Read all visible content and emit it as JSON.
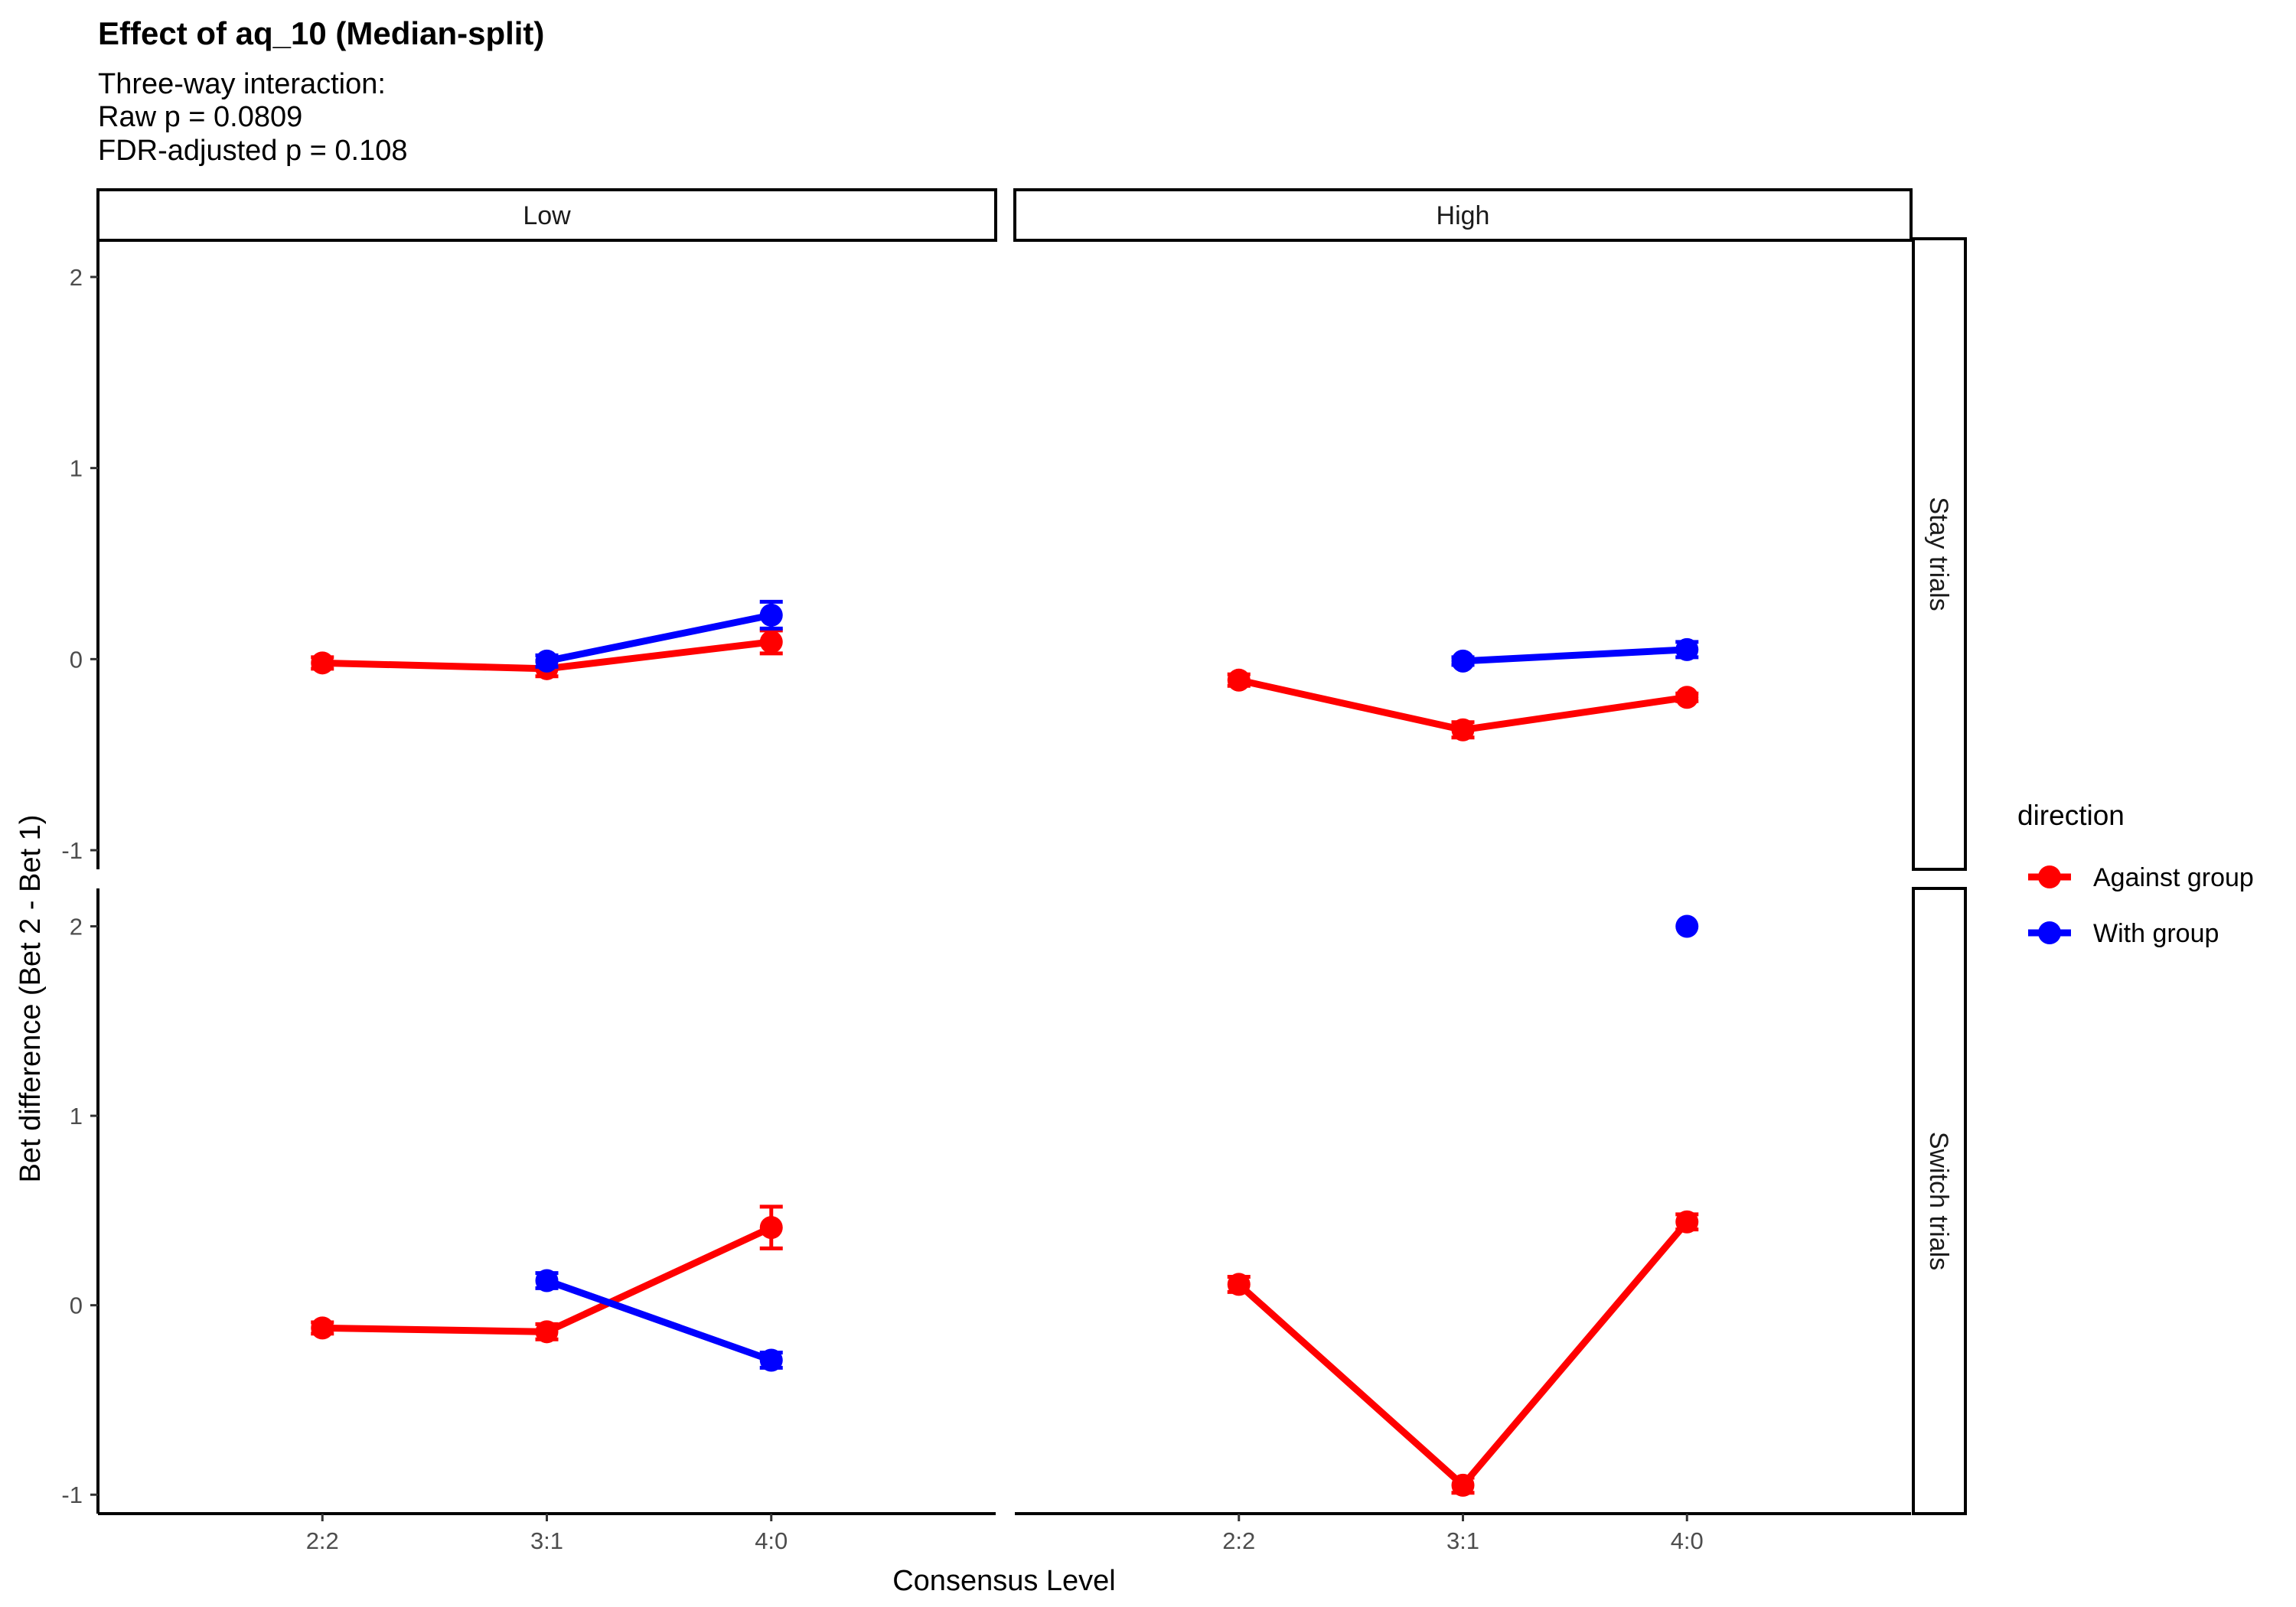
{
  "chart_data": {
    "type": "line",
    "title": "Effect of aq_10 (Median-split)",
    "subtitle_lines": [
      "Three-way interaction:",
      "Raw p = 0.0809",
      "FDR-adjusted p = 0.108"
    ],
    "xlabel": "Consensus Level",
    "ylabel": "Bet difference (Bet 2 - Bet 1)",
    "categories": [
      "2:2",
      "3:1",
      "4:0"
    ],
    "yticks": [
      -1,
      0,
      1,
      2
    ],
    "ylim": [
      -1.1,
      2.2
    ],
    "grid": false,
    "col_facets": [
      "Low",
      "High"
    ],
    "row_facets": [
      "Stay trials",
      "Switch trials"
    ],
    "legend": {
      "title": "direction",
      "position": "right",
      "entries": [
        {
          "name": "Against group",
          "color": "#ff0000"
        },
        {
          "name": "With group",
          "color": "#0000ff"
        }
      ]
    },
    "panels": [
      {
        "col": "Low",
        "row": "Stay trials",
        "series": [
          {
            "name": "Against group",
            "color": "#ff0000",
            "points": [
              {
                "x": "2:2",
                "y": -0.02,
                "err": 0.03
              },
              {
                "x": "3:1",
                "y": -0.05,
                "err": 0.04
              },
              {
                "x": "4:0",
                "y": 0.09,
                "err": 0.06
              }
            ]
          },
          {
            "name": "With group",
            "color": "#0000ff",
            "points": [
              {
                "x": "3:1",
                "y": -0.01,
                "err": 0.03
              },
              {
                "x": "4:0",
                "y": 0.23,
                "err": 0.07
              }
            ]
          }
        ]
      },
      {
        "col": "High",
        "row": "Stay trials",
        "series": [
          {
            "name": "Against group",
            "color": "#ff0000",
            "points": [
              {
                "x": "2:2",
                "y": -0.11,
                "err": 0.03
              },
              {
                "x": "3:1",
                "y": -0.37,
                "err": 0.04
              },
              {
                "x": "4:0",
                "y": -0.2,
                "err": 0.02
              }
            ]
          },
          {
            "name": "With group",
            "color": "#0000ff",
            "points": [
              {
                "x": "3:1",
                "y": -0.01,
                "err": 0.02
              },
              {
                "x": "4:0",
                "y": 0.05,
                "err": 0.04
              }
            ]
          }
        ]
      },
      {
        "col": "Low",
        "row": "Switch trials",
        "series": [
          {
            "name": "Against group",
            "color": "#ff0000",
            "points": [
              {
                "x": "2:2",
                "y": -0.12,
                "err": 0.03
              },
              {
                "x": "3:1",
                "y": -0.14,
                "err": 0.04
              },
              {
                "x": "4:0",
                "y": 0.41,
                "err": 0.11
              }
            ]
          },
          {
            "name": "With group",
            "color": "#0000ff",
            "points": [
              {
                "x": "3:1",
                "y": 0.13,
                "err": 0.04
              },
              {
                "x": "4:0",
                "y": -0.29,
                "err": 0.04
              }
            ]
          }
        ]
      },
      {
        "col": "High",
        "row": "Switch trials",
        "series": [
          {
            "name": "Against group",
            "color": "#ff0000",
            "points": [
              {
                "x": "2:2",
                "y": 0.11,
                "err": 0.04
              },
              {
                "x": "3:1",
                "y": -0.95,
                "err": 0.04
              },
              {
                "x": "4:0",
                "y": 0.44,
                "err": 0.04
              }
            ]
          },
          {
            "name": "With group",
            "color": "#0000ff",
            "points": [
              {
                "x": "4:0",
                "y": 2.0,
                "err": 0.0
              }
            ]
          }
        ]
      }
    ]
  }
}
